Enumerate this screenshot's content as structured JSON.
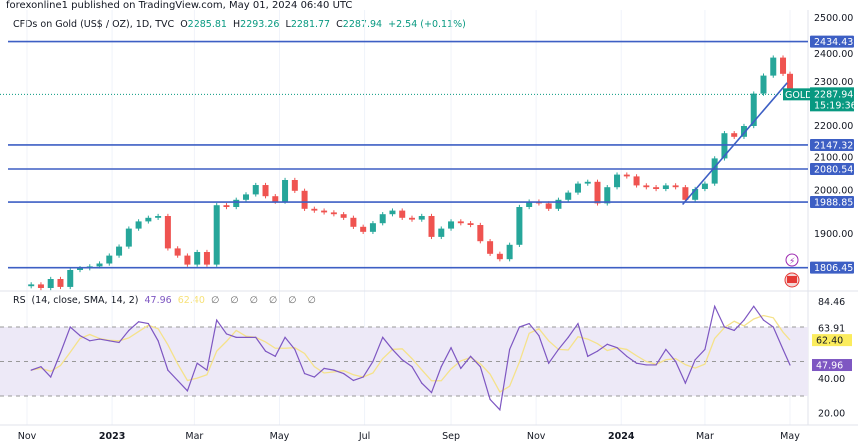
{
  "header": {
    "published": "forexonline1 published on TradingView.com, May 01, 2024 06:40 UTC"
  },
  "legend": {
    "symbol": "CFDs on Gold (US$ / OZ), 1D, TVC",
    "o_label": "O",
    "open": "2285.81",
    "h_label": "H",
    "high": "2293.26",
    "l_label": "L",
    "low": "2281.77",
    "c_label": "C",
    "close": "2287.94",
    "change": "+2.54 (+0.11%)"
  },
  "rsi_legend": {
    "label": "RSI (14, close, SMA, 14, 2)",
    "rsi": "47.96",
    "sma": "62.40",
    "hidden": "∅ ∅ ∅ ∅ ∅ ∅"
  },
  "colors": {
    "up": "#26a69a",
    "down": "#ef5350",
    "levels": "#3d5fc4",
    "rsi": "#7e57c2",
    "rsi_sma": "#f5e28a",
    "band": "#ede9f7",
    "gold_label": "#089981"
  },
  "icons": [
    "lightning-icon",
    "us-flag-icon"
  ],
  "chart_data": [
    {
      "type": "candlestick",
      "title": "CFDs on Gold (US$ / OZ), 1D, TVC",
      "ylim": [
        1760,
        2510
      ],
      "y_ticks": [
        "2500.00",
        "2400.00",
        "2300.00",
        "2200.00",
        "2100.00",
        "2000.00",
        "1900.00"
      ],
      "x_ticks": [
        {
          "label": "Nov",
          "date": "2022-11-01"
        },
        {
          "label": "2023",
          "date": "2023-01-01"
        },
        {
          "label": "Mar",
          "date": "2023-03-01"
        },
        {
          "label": "May",
          "date": "2023-05-01"
        },
        {
          "label": "Jul",
          "date": "2023-07-01"
        },
        {
          "label": "Sep",
          "date": "2023-09-01"
        },
        {
          "label": "Nov",
          "date": "2023-11-01"
        },
        {
          "label": "2024",
          "date": "2024-01-01"
        },
        {
          "label": "Mar",
          "date": "2024-03-01"
        },
        {
          "label": "May",
          "date": "2024-05-01"
        }
      ],
      "dates": [
        "2022-11-04",
        "2022-11-11",
        "2022-11-18",
        "2022-11-25",
        "2022-12-02",
        "2022-12-09",
        "2022-12-16",
        "2022-12-23",
        "2022-12-30",
        "2023-01-06",
        "2023-01-13",
        "2023-01-20",
        "2023-01-27",
        "2023-02-03",
        "2023-02-10",
        "2023-02-17",
        "2023-02-24",
        "2023-03-03",
        "2023-03-10",
        "2023-03-17",
        "2023-03-24",
        "2023-03-31",
        "2023-04-07",
        "2023-04-14",
        "2023-04-21",
        "2023-04-28",
        "2023-05-05",
        "2023-05-12",
        "2023-05-19",
        "2023-05-26",
        "2023-06-02",
        "2023-06-09",
        "2023-06-16",
        "2023-06-23",
        "2023-06-30",
        "2023-07-07",
        "2023-07-14",
        "2023-07-21",
        "2023-07-28",
        "2023-08-04",
        "2023-08-11",
        "2023-08-18",
        "2023-08-25",
        "2023-09-01",
        "2023-09-08",
        "2023-09-15",
        "2023-09-22",
        "2023-09-29",
        "2023-10-06",
        "2023-10-13",
        "2023-10-20",
        "2023-10-27",
        "2023-11-03",
        "2023-11-10",
        "2023-11-17",
        "2023-11-24",
        "2023-12-01",
        "2023-12-08",
        "2023-12-15",
        "2023-12-22",
        "2023-12-29",
        "2024-01-05",
        "2024-01-12",
        "2024-01-19",
        "2024-01-26",
        "2024-02-02",
        "2024-02-09",
        "2024-02-16",
        "2024-02-23",
        "2024-03-01",
        "2024-03-08",
        "2024-03-15",
        "2024-03-22",
        "2024-03-29",
        "2024-04-05",
        "2024-04-12",
        "2024-04-19",
        "2024-04-26",
        "2024-05-01"
      ],
      "close": [
        1760,
        1750,
        1775,
        1753,
        1800,
        1805,
        1810,
        1818,
        1840,
        1865,
        1915,
        1935,
        1945,
        1950,
        1860,
        1840,
        1815,
        1850,
        1815,
        1980,
        1975,
        1995,
        2010,
        2036,
        2005,
        1990,
        2050,
        2020,
        1970,
        1965,
        1960,
        1955,
        1945,
        1920,
        1906,
        1930,
        1955,
        1965,
        1945,
        1940,
        1950,
        1892,
        1915,
        1935,
        1930,
        1925,
        1880,
        1845,
        1830,
        1870,
        1975,
        1990,
        1985,
        1970,
        1995,
        2015,
        2040,
        2045,
        1985,
        2030,
        2065,
        2060,
        2035,
        2030,
        2025,
        2035,
        2030,
        1995,
        2025,
        2040,
        2110,
        2180,
        2170,
        2200,
        2290,
        2340,
        2390,
        2345,
        2287.94
      ],
      "horizontal_levels": [
        {
          "price": 2434.43,
          "label": "2434.43"
        },
        {
          "price": 2147.32,
          "label": "2147.32"
        },
        {
          "price": 2080.54,
          "label": "2080.54"
        },
        {
          "price": 1988.85,
          "label": "1988.85"
        },
        {
          "price": 1806.45,
          "label": "1806.45"
        }
      ],
      "trendline": {
        "start": {
          "date": "2024-02-14",
          "price": 1982
        },
        "end": {
          "date": "2024-04-29",
          "price": 2320
        }
      },
      "last_price": {
        "symbol": "GOLD",
        "price": 2287.94,
        "label": "2287.94",
        "countdown": "15:19:36"
      }
    },
    {
      "type": "line",
      "title": "RSI (14, close, SMA, 14, 2)",
      "ylim": [
        12,
        90
      ],
      "bands": {
        "upper": 70,
        "middle": 50,
        "lower": 30
      },
      "y_ticks": [
        "84.46",
        "63.91",
        "40.00",
        "20.00"
      ],
      "series": [
        {
          "name": "RSI",
          "values": [
            45,
            47,
            41,
            55,
            70,
            65,
            62,
            63,
            62,
            61,
            68,
            73,
            72,
            62,
            45,
            39,
            33,
            49,
            45,
            74,
            66,
            64,
            64,
            64,
            56,
            53,
            64,
            57,
            43,
            41,
            46,
            45,
            43,
            39,
            41,
            50,
            64,
            57,
            51,
            47,
            37.5,
            32,
            47,
            58,
            46,
            53,
            47,
            28,
            22,
            57,
            70,
            72,
            65,
            49,
            57,
            64,
            72,
            53,
            56,
            60,
            58,
            53,
            49,
            48,
            48,
            57,
            50,
            37.5,
            51,
            57,
            82,
            70,
            68,
            74,
            82,
            74,
            70,
            57,
            47.96
          ],
          "last_label": "47.96"
        },
        {
          "name": "SMA",
          "last_value": 62.4,
          "last_label": "62.40"
        }
      ]
    }
  ]
}
